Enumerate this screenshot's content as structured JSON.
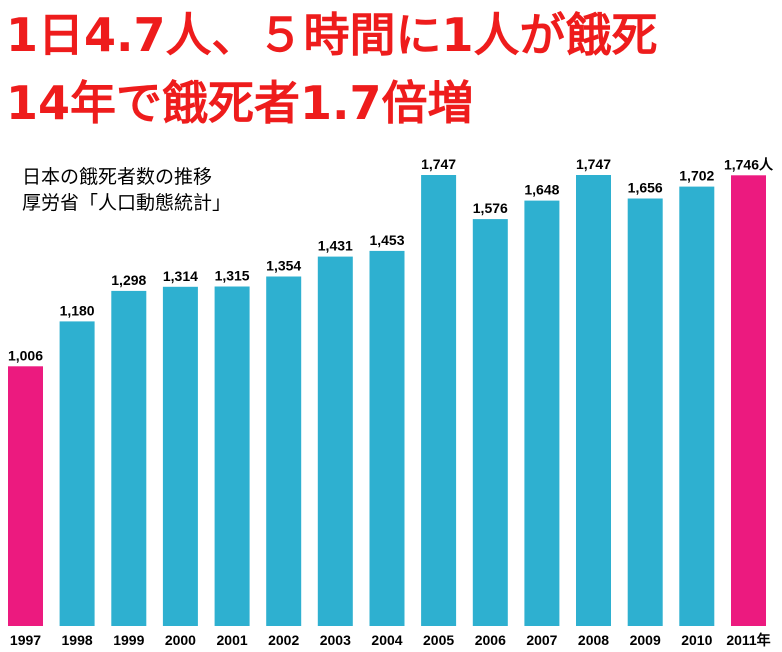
{
  "headline": {
    "line1": "1日4.7人、５時間に1人が餓死",
    "line2": "14年で餓死者1.7倍増"
  },
  "subtitle": {
    "line1": "日本の餓死者数の推移",
    "line2": "厚労省「人口動態統計」"
  },
  "colors": {
    "headline": "#ee1c1c",
    "bar_default": "#2eb0d0",
    "bar_highlight": "#ec1a7f",
    "text": "#000000"
  },
  "chart_data": {
    "type": "bar",
    "title": "日本の餓死者数の推移",
    "source": "厚労省「人口動態統計」",
    "categories": [
      "1997",
      "1998",
      "1999",
      "2000",
      "2001",
      "2002",
      "2003",
      "2004",
      "2005",
      "2006",
      "2007",
      "2008",
      "2009",
      "2010",
      "2011年"
    ],
    "values": [
      1006,
      1180,
      1298,
      1314,
      1315,
      1354,
      1431,
      1453,
      1747,
      1576,
      1648,
      1747,
      1656,
      1702,
      1746
    ],
    "value_labels": [
      "1,006",
      "1,180",
      "1,298",
      "1,314",
      "1,315",
      "1,354",
      "1,431",
      "1,453",
      "1,747",
      "1,576",
      "1,648",
      "1,747",
      "1,656",
      "1,702",
      "1,746人"
    ],
    "highlighted": [
      true,
      false,
      false,
      false,
      false,
      false,
      false,
      false,
      false,
      false,
      false,
      false,
      false,
      false,
      true
    ],
    "ylim": [
      0,
      1747
    ],
    "grid": false,
    "legend": "none"
  }
}
